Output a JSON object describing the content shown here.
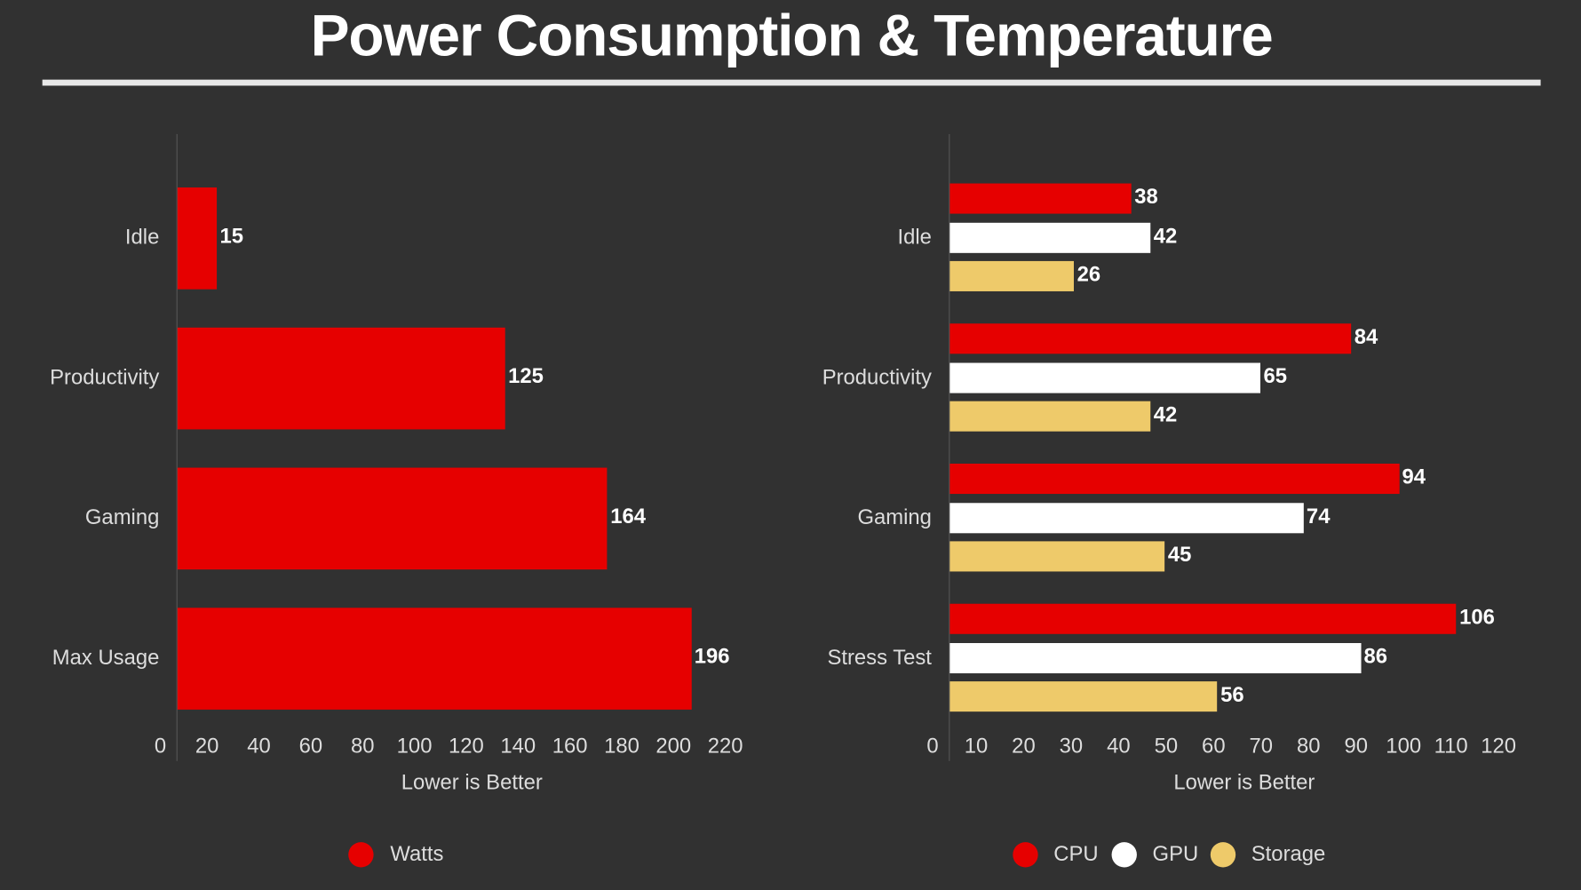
{
  "title": "Power Consumption & Temperature",
  "chart_data": [
    {
      "type": "bar",
      "orientation": "horizontal",
      "categories": [
        "Idle",
        "Productivity",
        "Gaming",
        "Max Usage"
      ],
      "series": [
        {
          "name": "Watts",
          "values": [
            15,
            125,
            164,
            196
          ],
          "color": "#e60000"
        }
      ],
      "xlabel": "Lower is Better",
      "xlim": [
        0,
        220
      ],
      "xticks": [
        0,
        20,
        40,
        60,
        80,
        100,
        120,
        140,
        160,
        180,
        200,
        220
      ],
      "grid": false,
      "legend": "bottom"
    },
    {
      "type": "bar",
      "orientation": "horizontal",
      "categories": [
        "Idle",
        "Productivity",
        "Gaming",
        "Stress Test"
      ],
      "series": [
        {
          "name": "CPU",
          "values": [
            38,
            84,
            94,
            106
          ],
          "color": "#e60000"
        },
        {
          "name": "GPU",
          "values": [
            42,
            65,
            74,
            86
          ],
          "color": "#ffffff"
        },
        {
          "name": "Storage",
          "values": [
            26,
            42,
            45,
            56
          ],
          "color": "#eeca6a"
        }
      ],
      "xlabel": "Lower is Better",
      "xlim": [
        0,
        120
      ],
      "xticks": [
        0,
        10,
        20,
        30,
        40,
        50,
        60,
        70,
        80,
        90,
        100,
        110,
        120
      ],
      "grid": false,
      "legend": "bottom"
    }
  ]
}
